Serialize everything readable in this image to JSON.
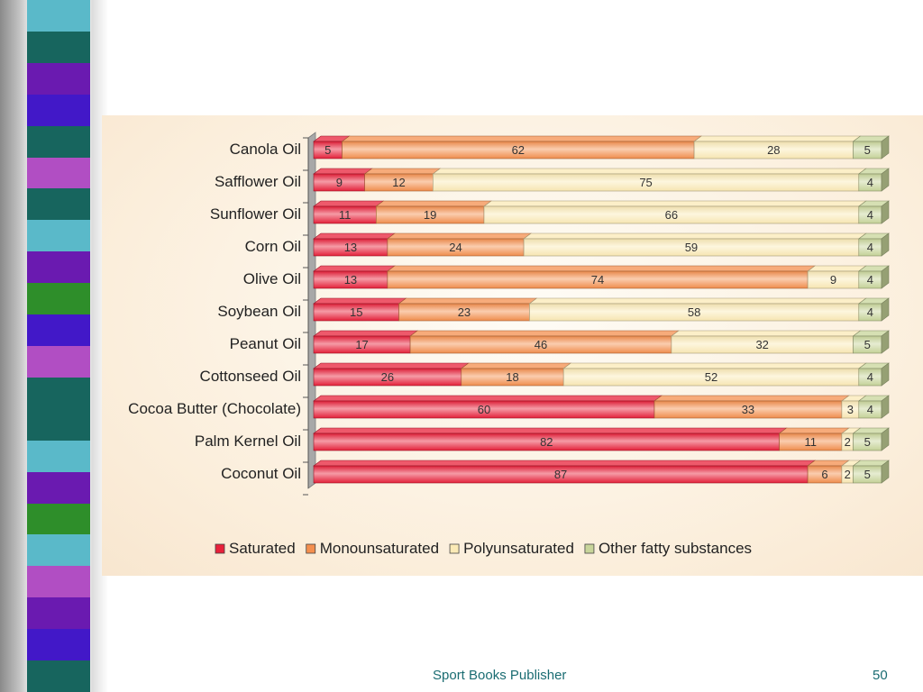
{
  "colors": {
    "saturated": "#e8213a",
    "monounsaturated": "#f48f4e",
    "polyunsaturated": "#fbeab6",
    "other": "#c8d59a",
    "footer_text": "#1a6c72"
  },
  "stripe_colors": [
    "#5ab9c9",
    "#17655e",
    "#6a1ab0",
    "#4218c8",
    "#17655e",
    "#b14ec3",
    "#17655e",
    "#5ab9c9",
    "#6a1ab0",
    "#2e8e2a",
    "#4218c8",
    "#b14ec3",
    "#17655e",
    "#17655e",
    "#5ab9c9",
    "#6a1ab0",
    "#2e8e2a",
    "#5ab9c9",
    "#b14ec3",
    "#6a1ab0",
    "#4218c8",
    "#17655e"
  ],
  "chart_data": {
    "type": "bar",
    "orientation": "horizontal",
    "stacked": true,
    "title": "",
    "xlabel": "",
    "ylabel": "",
    "xlim": [
      0,
      100
    ],
    "categories": [
      "Canola Oil",
      "Safflower Oil",
      "Sunflower Oil",
      "Corn Oil",
      "Olive Oil",
      "Soybean Oil",
      "Peanut Oil",
      "Cottonseed Oil",
      "Cocoa Butter (Chocolate)",
      "Palm Kernel Oil",
      "Coconut Oil"
    ],
    "series": [
      {
        "name": "Saturated",
        "color": "#e8213a",
        "values": [
          5,
          9,
          11,
          13,
          13,
          15,
          17,
          26,
          60,
          82,
          87
        ]
      },
      {
        "name": "Monounsaturated",
        "color": "#f48f4e",
        "values": [
          62,
          12,
          19,
          24,
          74,
          23,
          46,
          18,
          33,
          11,
          6
        ]
      },
      {
        "name": "Polyunsaturated",
        "color": "#fbeab6",
        "values": [
          28,
          75,
          66,
          59,
          9,
          58,
          32,
          52,
          3,
          2,
          2
        ]
      },
      {
        "name": "Other fatty substances",
        "color": "#c8d59a",
        "values": [
          5,
          4,
          4,
          4,
          4,
          4,
          5,
          4,
          4,
          5,
          5
        ]
      }
    ],
    "legend_position": "bottom",
    "grid": false
  },
  "footer": {
    "publisher": "Sport Books Publisher",
    "page_number": "50"
  }
}
